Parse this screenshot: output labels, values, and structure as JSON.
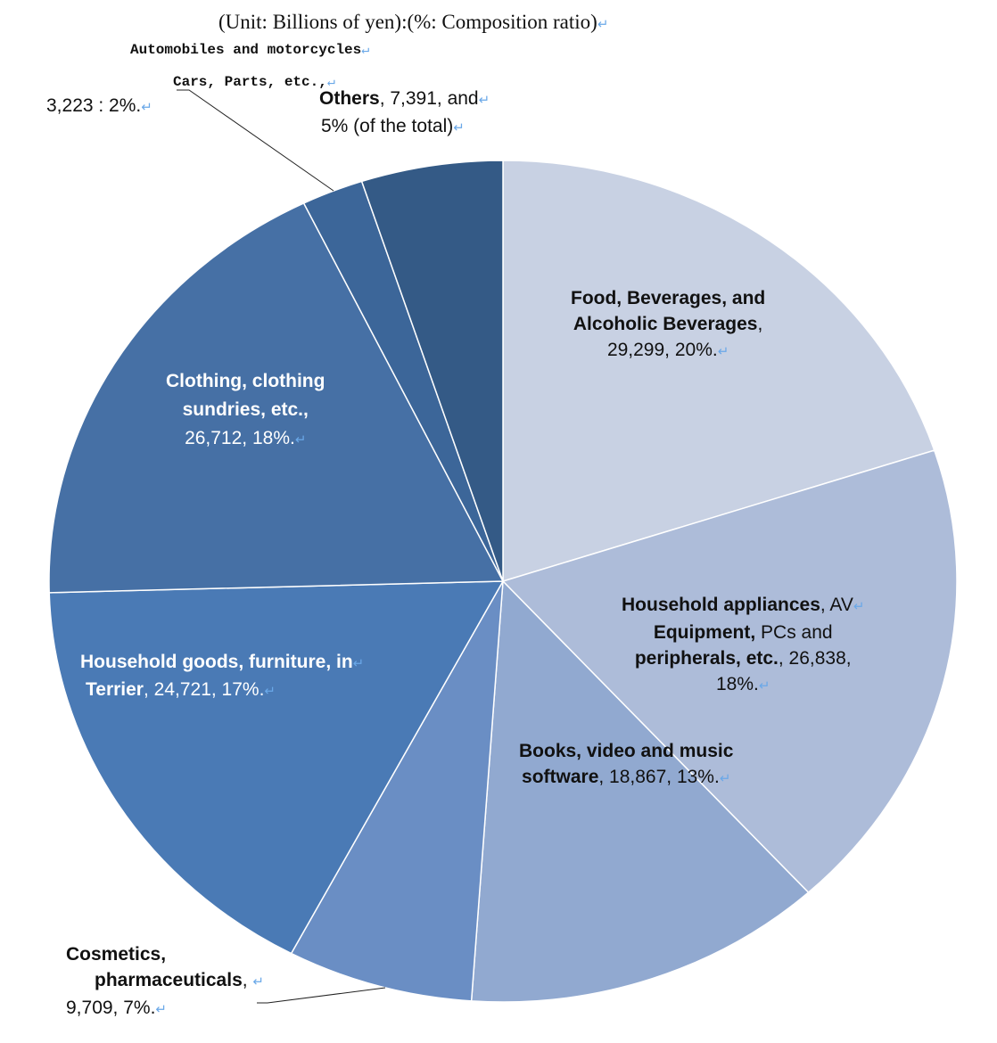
{
  "chart_data": {
    "type": "pie",
    "subtitle": "(Unit: Billions of yen):(%: Composition ratio)",
    "start": "top",
    "direction": "clockwise",
    "slices": [
      {
        "category": "Food, Beverages, and Alcoholic Beverages",
        "value": 29299,
        "percent": 20,
        "color": "#c8d1e3",
        "label": [
          {
            "b": "Food, Beverages, and",
            "n": ""
          },
          {
            "b": "Alcoholic Beverages",
            "n": ","
          },
          {
            "b": "",
            "n": "29,299, 20%."
          }
        ]
      },
      {
        "category": "Household appliances, AV Equipment, PCs and peripherals, etc.",
        "value": 26838,
        "percent": 18,
        "color": "#adbcd9",
        "label": [
          {
            "b": "Household appliances",
            "n": ", AV"
          },
          {
            "b": "Equipment,",
            "n": " PCs and"
          },
          {
            "b": "peripherals, etc.",
            "n": ", 26,838,"
          },
          {
            "b": "",
            "n": "18%."
          }
        ]
      },
      {
        "category": "Books, video and music software",
        "value": 18867,
        "percent": 13,
        "color": "#91a9d0",
        "label": [
          {
            "b": "Books, video and music",
            "n": ""
          },
          {
            "b": "software",
            "n": ", 18,867, 13%."
          }
        ]
      },
      {
        "category": "Cosmetics, pharmaceuticals",
        "value": 9709,
        "percent": 7,
        "color": "#6a8ec4",
        "label": [
          {
            "b": "Cosmetics,",
            "n": ""
          },
          {
            "b": "pharmaceuticals",
            "n": ", "
          },
          {
            "b": "",
            "n": "9,709, 7%."
          }
        ]
      },
      {
        "category": "Household goods, furniture, interior",
        "value": 24721,
        "percent": 17,
        "color": "#4a7ab5",
        "label": [
          {
            "b": "Household goods, furniture, in",
            "n": ""
          },
          {
            "b": "Terrier",
            "n": ", 24,721, 17%."
          }
        ]
      },
      {
        "category": "Clothing, clothing sundries, etc.",
        "value": 26712,
        "percent": 18,
        "color": "#4670a5",
        "label": [
          {
            "b": "Clothing, clothing",
            "n": ""
          },
          {
            "b": "sundries, etc.,",
            "n": ""
          },
          {
            "b": "",
            "n": "26,712, 18%."
          }
        ]
      },
      {
        "category": "Automobiles and motorcycles Cars, Parts, etc.",
        "value": 3223,
        "percent": 2,
        "color": "#3c6699",
        "label": [
          {
            "b": "Automobiles and motorcycles",
            "n": ""
          },
          {
            "b": "Cars, Parts, etc.,",
            "n": ""
          },
          {
            "b": "",
            "n": "3,223 : 2%."
          }
        ]
      },
      {
        "category": "Others",
        "value": 7391,
        "percent": 5,
        "color": "#345a86",
        "label": [
          {
            "b": "Others",
            "n": ", 7,391, and"
          },
          {
            "b": "",
            "n": "5% (of the total)"
          }
        ]
      }
    ]
  }
}
